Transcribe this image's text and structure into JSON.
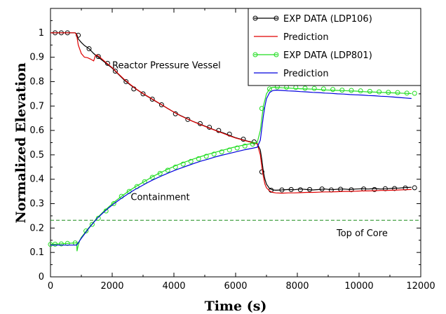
{
  "chart_data": {
    "type": "line",
    "xlabel": "Time (s)",
    "ylabel": "Normalized Elevation",
    "xlim": [
      0,
      12000
    ],
    "ylim": [
      0,
      1.1
    ],
    "xticks": [
      0,
      2000,
      4000,
      6000,
      8000,
      10000,
      12000
    ],
    "yticks": [
      0,
      0.1,
      0.2,
      0.3,
      0.4,
      0.5,
      0.6,
      0.7,
      0.8,
      0.9,
      1
    ],
    "ytick_labels": [
      "0",
      "0.1",
      "0.2",
      "0.3",
      "0.4",
      "0.5",
      "0.6",
      "0.7",
      "0.8",
      "0.9",
      "1"
    ],
    "grid": false,
    "legend_position": "top-right",
    "reference_line": {
      "y": 0.232,
      "label": "Top of Core",
      "color": "#1a8c1a",
      "style": "dashed"
    },
    "annotations": [
      {
        "text": "Reactor Pressure Vessel",
        "x": 2000,
        "y": 0.855
      },
      {
        "text": "Containment",
        "x": 2600,
        "y": 0.315
      }
    ],
    "series": [
      {
        "name": "EXP DATA (LDP106)",
        "color": "#000000",
        "marker": "circle",
        "x": [
          0,
          300,
          550,
          800,
          850,
          900,
          1000,
          1100,
          1250,
          1400,
          1600,
          1800,
          2000,
          2200,
          2400,
          2600,
          2800,
          3000,
          3200,
          3400,
          3600,
          3800,
          4000,
          4200,
          4400,
          4600,
          4800,
          5000,
          5200,
          5400,
          5600,
          5800,
          6000,
          6200,
          6400,
          6600,
          6700,
          6800,
          6850,
          6900,
          6950,
          7000,
          7100,
          7200,
          7300,
          7500,
          7700,
          7900,
          8100,
          8300,
          8500,
          8700,
          8900,
          9100,
          9300,
          9500,
          9700,
          9900,
          10100,
          10300,
          10500,
          10700,
          10900,
          11100,
          11300,
          11500,
          11700
        ],
        "y": [
          1.0,
          1.0,
          1.0,
          1.0,
          0.995,
          0.975,
          0.96,
          0.948,
          0.935,
          0.915,
          0.895,
          0.875,
          0.855,
          0.83,
          0.805,
          0.785,
          0.767,
          0.75,
          0.735,
          0.72,
          0.705,
          0.69,
          0.675,
          0.662,
          0.65,
          0.638,
          0.628,
          0.618,
          0.608,
          0.598,
          0.59,
          0.58,
          0.57,
          0.563,
          0.556,
          0.55,
          0.546,
          0.52,
          0.48,
          0.43,
          0.4,
          0.38,
          0.362,
          0.356,
          0.355,
          0.356,
          0.358,
          0.357,
          0.36,
          0.358,
          0.356,
          0.358,
          0.36,
          0.357,
          0.359,
          0.36,
          0.358,
          0.36,
          0.361,
          0.36,
          0.362,
          0.36,
          0.361,
          0.363,
          0.364,
          0.366,
          0.367
        ],
        "markers_x": [
          150,
          350,
          550,
          900,
          1250,
          1550,
          1850,
          2100,
          2450,
          2700,
          3000,
          3300,
          3600,
          4050,
          4450,
          4850,
          5150,
          5450,
          5800,
          6250,
          6600,
          6850,
          7150,
          7500,
          7800,
          8100,
          8400,
          8800,
          9100,
          9400,
          9750,
          10150,
          10500,
          10850,
          11150,
          11500,
          11800
        ],
        "markers_y": [
          1.0,
          1.0,
          1.0,
          0.99,
          0.935,
          0.903,
          0.875,
          0.843,
          0.8,
          0.77,
          0.75,
          0.728,
          0.705,
          0.668,
          0.645,
          0.628,
          0.613,
          0.6,
          0.585,
          0.564,
          0.553,
          0.43,
          0.355,
          0.356,
          0.358,
          0.357,
          0.358,
          0.36,
          0.356,
          0.359,
          0.357,
          0.36,
          0.358,
          0.361,
          0.362,
          0.364,
          0.365
        ]
      },
      {
        "name": "Prediction",
        "color": "#e00000",
        "marker": "none",
        "x": [
          0,
          300,
          550,
          800,
          850,
          900,
          1000,
          1100,
          1200,
          1300,
          1400,
          1450,
          1500,
          1600,
          1800,
          2000,
          2200,
          2400,
          2600,
          2800,
          3000,
          3200,
          3400,
          3600,
          3800,
          4000,
          4200,
          4400,
          4600,
          4800,
          5000,
          5200,
          5400,
          5600,
          5800,
          6000,
          6200,
          6400,
          6600,
          6700,
          6800,
          6850,
          6900,
          6950,
          7000,
          7100,
          7200,
          7300,
          7500,
          7700,
          7900,
          8100,
          8300,
          8500,
          8700,
          8900,
          9100,
          9300,
          9500,
          9700,
          9900,
          10100,
          10300,
          10500,
          10700,
          10900,
          11100,
          11300,
          11500,
          11700
        ],
        "y": [
          1.0,
          1.0,
          1.0,
          1.0,
          0.99,
          0.95,
          0.915,
          0.9,
          0.898,
          0.892,
          0.885,
          0.905,
          0.91,
          0.9,
          0.878,
          0.857,
          0.832,
          0.808,
          0.787,
          0.768,
          0.751,
          0.736,
          0.721,
          0.706,
          0.69,
          0.675,
          0.661,
          0.649,
          0.638,
          0.627,
          0.617,
          0.607,
          0.597,
          0.588,
          0.578,
          0.569,
          0.562,
          0.555,
          0.548,
          0.545,
          0.5,
          0.45,
          0.41,
          0.38,
          0.365,
          0.352,
          0.346,
          0.344,
          0.343,
          0.344,
          0.344,
          0.345,
          0.346,
          0.346,
          0.347,
          0.348,
          0.348,
          0.349,
          0.35,
          0.35,
          0.351,
          0.352,
          0.352,
          0.353,
          0.354,
          0.354,
          0.355,
          0.356,
          0.357,
          0.358
        ]
      },
      {
        "name": "EXP DATA (LDP801)",
        "color": "#22dd22",
        "marker": "circle",
        "x": [
          0,
          300,
          550,
          800,
          850,
          860,
          900,
          950,
          1000,
          1100,
          1200,
          1300,
          1400,
          1500,
          1700,
          1900,
          2100,
          2300,
          2500,
          2700,
          2900,
          3100,
          3300,
          3500,
          3700,
          3900,
          4100,
          4300,
          4500,
          4700,
          4900,
          5100,
          5300,
          5500,
          5700,
          5900,
          6100,
          6300,
          6500,
          6700,
          6800,
          6850,
          6900,
          7000,
          7100,
          7200,
          7300,
          7500,
          7700,
          7900,
          8100,
          8300,
          8500,
          8700,
          8900,
          9100,
          9300,
          9500,
          9700,
          9900,
          10100,
          10300,
          10500,
          10700,
          10900,
          11100,
          11300,
          11500,
          11700
        ],
        "y": [
          0.133,
          0.135,
          0.137,
          0.139,
          0.14,
          0.105,
          0.13,
          0.15,
          0.162,
          0.178,
          0.195,
          0.21,
          0.225,
          0.24,
          0.265,
          0.288,
          0.31,
          0.33,
          0.348,
          0.365,
          0.38,
          0.395,
          0.41,
          0.423,
          0.435,
          0.447,
          0.458,
          0.468,
          0.477,
          0.486,
          0.494,
          0.502,
          0.509,
          0.516,
          0.523,
          0.53,
          0.536,
          0.541,
          0.546,
          0.55,
          0.6,
          0.65,
          0.7,
          0.75,
          0.77,
          0.777,
          0.777,
          0.775,
          0.774,
          0.772,
          0.771,
          0.77,
          0.769,
          0.768,
          0.766,
          0.765,
          0.764,
          0.763,
          0.762,
          0.761,
          0.759,
          0.758,
          0.757,
          0.756,
          0.755,
          0.754,
          0.753,
          0.752,
          0.751
        ],
        "markers_x": [
          0,
          150,
          350,
          550,
          800,
          1150,
          1350,
          1550,
          1800,
          2050,
          2300,
          2550,
          2800,
          3050,
          3300,
          3550,
          3800,
          4050,
          4300,
          4550,
          4800,
          5050,
          5300,
          5550,
          5800,
          6050,
          6300,
          6550,
          6850,
          7100,
          7350,
          7650,
          7950,
          8250,
          8550,
          8850,
          9150,
          9450,
          9750,
          10050,
          10350,
          10650,
          10950,
          11250,
          11550,
          11800
        ],
        "markers_y": [
          0.133,
          0.134,
          0.135,
          0.137,
          0.139,
          0.188,
          0.215,
          0.24,
          0.27,
          0.3,
          0.33,
          0.35,
          0.37,
          0.39,
          0.408,
          0.424,
          0.437,
          0.45,
          0.462,
          0.473,
          0.484,
          0.494,
          0.503,
          0.512,
          0.52,
          0.528,
          0.536,
          0.544,
          0.69,
          0.77,
          0.778,
          0.777,
          0.776,
          0.773,
          0.772,
          0.77,
          0.768,
          0.765,
          0.764,
          0.762,
          0.76,
          0.758,
          0.756,
          0.755,
          0.753,
          0.752
        ]
      },
      {
        "name": "Prediction",
        "color": "#0000dd",
        "marker": "none",
        "x": [
          0,
          300,
          550,
          800,
          850,
          900,
          1000,
          1100,
          1200,
          1300,
          1400,
          1500,
          1700,
          1900,
          2100,
          2300,
          2500,
          2700,
          2900,
          3100,
          3300,
          3500,
          3700,
          3900,
          4100,
          4300,
          4500,
          4700,
          4900,
          5100,
          5300,
          5500,
          5700,
          5900,
          6100,
          6300,
          6500,
          6700,
          6800,
          6850,
          6900,
          6950,
          7000,
          7100,
          7200,
          7300,
          7500,
          7700,
          7900,
          8100,
          8300,
          8500,
          8700,
          8900,
          9100,
          9300,
          9500,
          9700,
          9900,
          10100,
          10300,
          10500,
          10700,
          10900,
          11100,
          11300,
          11500,
          11700
        ],
        "y": [
          0.13,
          0.13,
          0.13,
          0.13,
          0.13,
          0.14,
          0.158,
          0.175,
          0.192,
          0.208,
          0.223,
          0.238,
          0.262,
          0.284,
          0.304,
          0.322,
          0.339,
          0.355,
          0.369,
          0.383,
          0.396,
          0.408,
          0.419,
          0.43,
          0.44,
          0.449,
          0.458,
          0.467,
          0.475,
          0.482,
          0.49,
          0.497,
          0.503,
          0.509,
          0.515,
          0.521,
          0.526,
          0.531,
          0.56,
          0.61,
          0.66,
          0.7,
          0.73,
          0.755,
          0.763,
          0.765,
          0.764,
          0.762,
          0.761,
          0.759,
          0.758,
          0.756,
          0.755,
          0.753,
          0.752,
          0.75,
          0.749,
          0.747,
          0.746,
          0.745,
          0.743,
          0.742,
          0.74,
          0.739,
          0.737,
          0.735,
          0.733,
          0.731
        ]
      }
    ]
  }
}
